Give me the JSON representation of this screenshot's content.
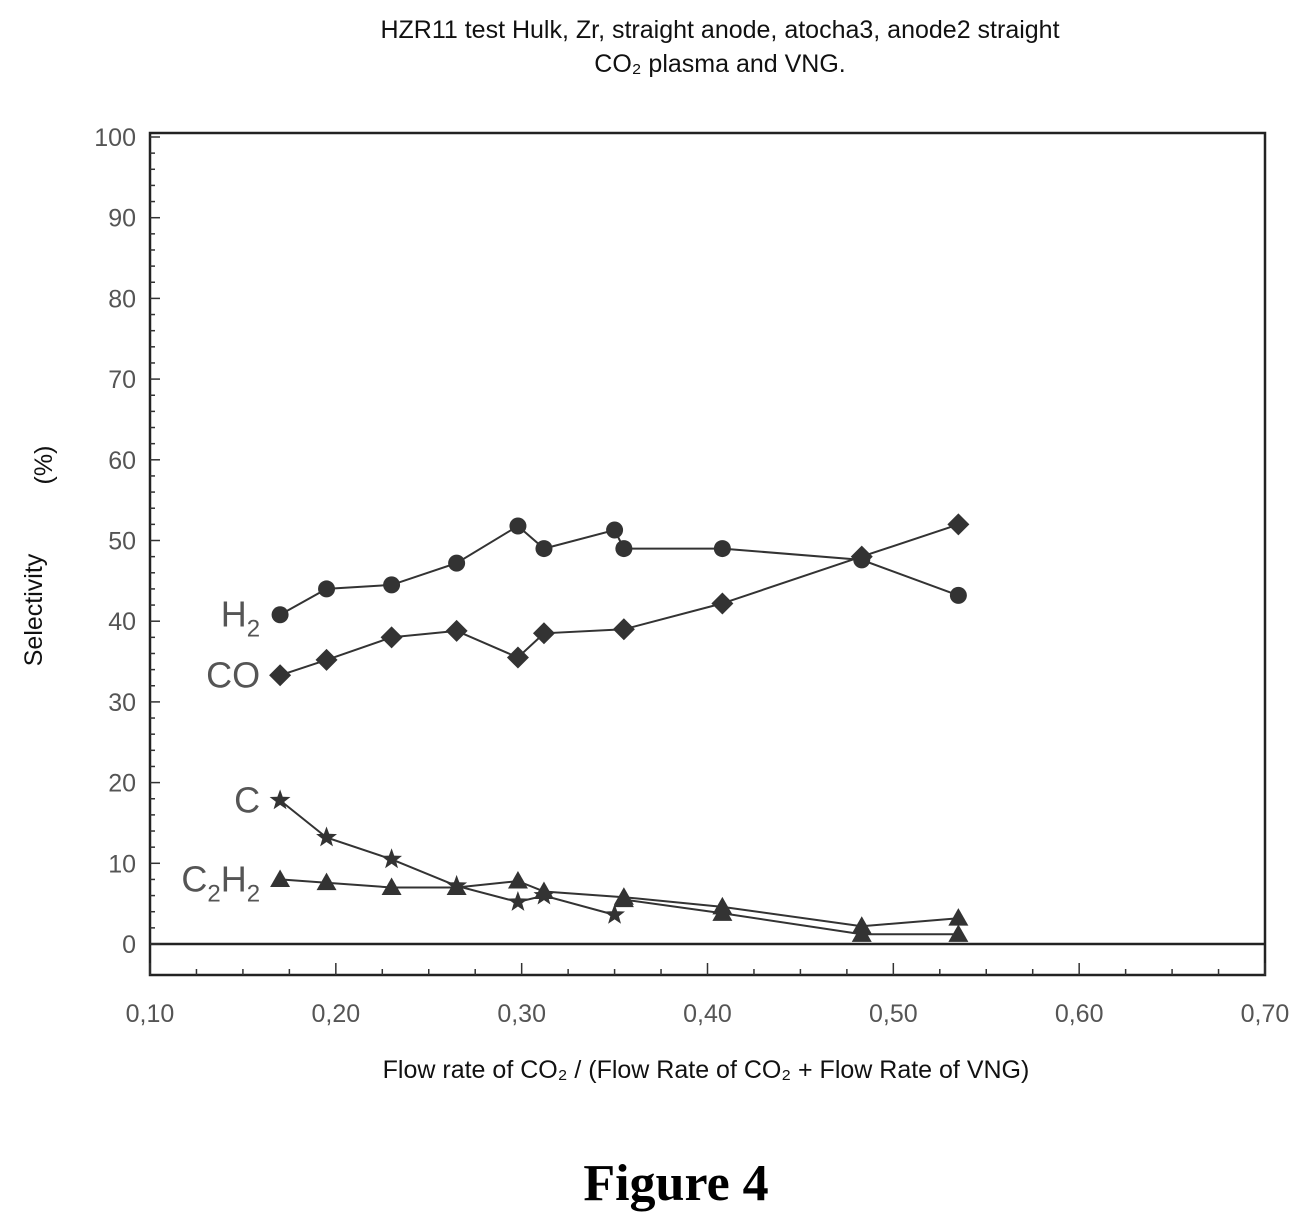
{
  "chart_data": {
    "type": "line",
    "title_lines": [
      "HZR11 test Hulk, Zr, straight anode, atocha3, anode2 straight",
      "CO₂ plasma and VNG."
    ],
    "xlabel": "Flow rate of CO₂ / (Flow Rate of CO₂ + Flow Rate of VNG)",
    "ylabel": "Selectivity",
    "ylabel_unit": "(%)",
    "xlim": [
      0.1,
      0.7
    ],
    "ylim": [
      0,
      100
    ],
    "x_ticks": [
      "0,10",
      "0,20",
      "0,30",
      "0,40",
      "0,50",
      "0,60",
      "0,70"
    ],
    "y_ticks": [
      "0",
      "10",
      "20",
      "30",
      "40",
      "50",
      "60",
      "70",
      "80",
      "90",
      "100"
    ],
    "series": [
      {
        "name": "H₂",
        "label_main": "H",
        "label_sub": "2",
        "marker": "circle",
        "points": [
          [
            0.17,
            40.8
          ],
          [
            0.195,
            44.0
          ],
          [
            0.23,
            44.5
          ],
          [
            0.265,
            47.2
          ],
          [
            0.298,
            51.8
          ],
          [
            0.312,
            49.0
          ],
          [
            0.35,
            51.3
          ],
          [
            0.355,
            49.0
          ],
          [
            0.408,
            49.0
          ],
          [
            0.483,
            47.6
          ],
          [
            0.535,
            43.2
          ]
        ]
      },
      {
        "name": "CO",
        "label_main": "CO",
        "label_sub": "",
        "marker": "diamond",
        "points": [
          [
            0.17,
            33.3
          ],
          [
            0.195,
            35.2
          ],
          [
            0.23,
            38.0
          ],
          [
            0.265,
            38.8
          ],
          [
            0.298,
            35.5
          ],
          [
            0.312,
            38.5
          ],
          [
            0.355,
            39.0
          ],
          [
            0.408,
            42.2
          ],
          [
            0.483,
            48.0
          ],
          [
            0.535,
            52.0
          ]
        ]
      },
      {
        "name": "C",
        "label_main": "C",
        "label_sub": "",
        "marker": "star",
        "points": [
          [
            0.17,
            17.8
          ],
          [
            0.195,
            13.2
          ],
          [
            0.23,
            10.5
          ],
          [
            0.265,
            7.2
          ],
          [
            0.298,
            5.2
          ],
          [
            0.312,
            6.0
          ],
          [
            0.35,
            3.6
          ]
        ]
      },
      {
        "name": "C₂H₂",
        "label_main": "C",
        "label_sub": "2",
        "label_main2": "H",
        "label_sub2": "2",
        "marker": "triangle",
        "points": [
          [
            0.17,
            8.0
          ],
          [
            0.195,
            7.6
          ],
          [
            0.23,
            7.0
          ],
          [
            0.265,
            7.0
          ],
          [
            0.298,
            7.8
          ],
          [
            0.312,
            6.5
          ],
          [
            0.355,
            5.8
          ],
          [
            0.408,
            4.6
          ],
          [
            0.483,
            2.2
          ],
          [
            0.535,
            3.2
          ]
        ]
      },
      {
        "name": "",
        "label_main": "",
        "label_sub": "",
        "marker": "triangle",
        "points": [
          [
            0.355,
            5.5
          ],
          [
            0.408,
            3.8
          ],
          [
            0.483,
            1.2
          ],
          [
            0.535,
            1.2
          ]
        ]
      }
    ],
    "grid": false,
    "legend": "inline-labels"
  },
  "figure_caption": "Figure 4",
  "colors": {
    "markers": "#333333",
    "lines": "#333333",
    "frame": "#222222"
  }
}
